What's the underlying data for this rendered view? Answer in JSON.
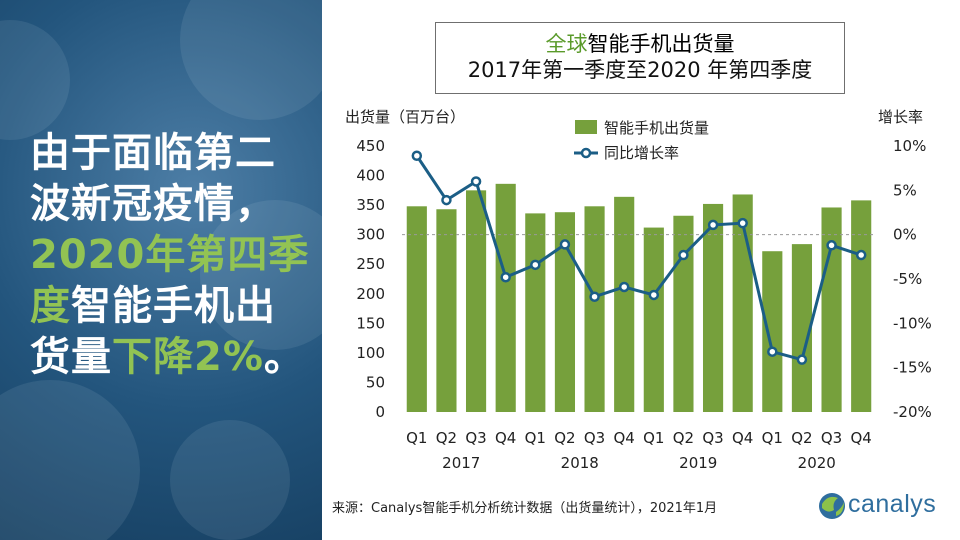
{
  "headline": {
    "part1": "由于面临第二波新冠疫情，",
    "part2_green": "2020年第四季度",
    "part3": "智能手机出货量",
    "part4_green": "下降2%",
    "part5": "。"
  },
  "chart_data": {
    "type": "bar+line",
    "title_green": "全球",
    "title_rest": "智能手机出货量",
    "subtitle": "2017年第一季度至2020 年第四季度",
    "y_left_label": "出货量（百万台）",
    "y_right_label": "增长率",
    "categories": [
      "Q1",
      "Q2",
      "Q3",
      "Q4",
      "Q1",
      "Q2",
      "Q3",
      "Q4",
      "Q1",
      "Q2",
      "Q3",
      "Q4",
      "Q1",
      "Q2",
      "Q3",
      "Q4"
    ],
    "years": [
      "2017",
      "2018",
      "2019",
      "2020"
    ],
    "ylim_left": [
      0,
      450
    ],
    "yticks_left": [
      "450",
      "400",
      "350",
      "300",
      "250",
      "200",
      "150",
      "100",
      "50",
      "0"
    ],
    "ylim_right": [
      -20,
      10
    ],
    "yticks_right": [
      "10%",
      "5%",
      "0%",
      "-5%",
      "-10%",
      "-15%",
      "-20%"
    ],
    "series": [
      {
        "name": "智能手机出货量",
        "type": "bar",
        "color": "#76a03c",
        "values": [
          348,
          343,
          375,
          386,
          336,
          338,
          348,
          364,
          312,
          332,
          352,
          368,
          272,
          284,
          346,
          358
        ]
      },
      {
        "name": "同比增长率",
        "type": "line",
        "color": "#1b5e86",
        "values": [
          8.9,
          3.9,
          6.0,
          -4.8,
          -3.4,
          -1.1,
          -7.0,
          -5.9,
          -6.8,
          -2.3,
          1.1,
          1.3,
          -13.2,
          -14.1,
          -1.2,
          -2.3
        ]
      }
    ],
    "reference_line_right": 0
  },
  "source": "来源：Canalys智能手机分析统计数据（出货量统计），2021年1月",
  "logo": {
    "text": "canalys"
  }
}
